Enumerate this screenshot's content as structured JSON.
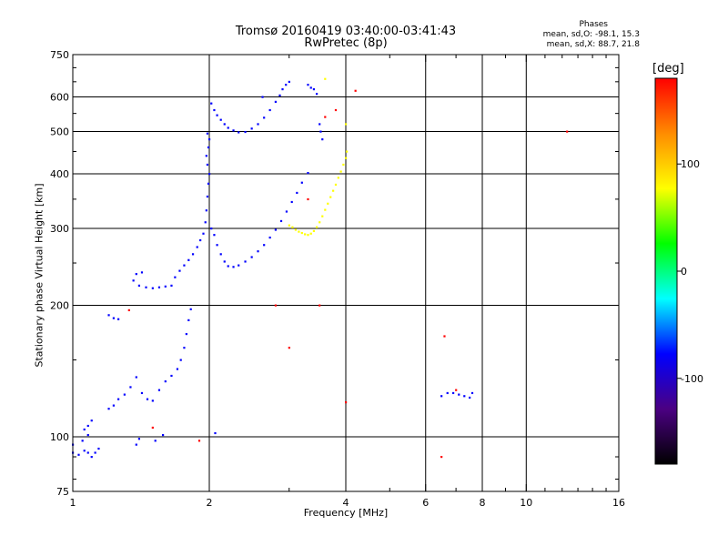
{
  "header": {
    "title_line1": "Tromsø 20160419 03:40:00-03:41:43",
    "title_line2": "RwPretec (8p)",
    "phases_title": "Phases",
    "phases_o": "mean, sd,O:  -98.1, 15.3",
    "phases_x": "mean, sd,X:  88.7, 21.8"
  },
  "colorbar": {
    "unit": "[deg]",
    "range": [
      -180,
      180
    ],
    "ticks": [
      100,
      0,
      -100
    ],
    "stops": [
      "#000000",
      "#4b0082",
      "#0000ff",
      "#00ffff",
      "#00ff00",
      "#ffff00",
      "#ff8c00",
      "#ff0000"
    ]
  },
  "chart_data": {
    "type": "scatter",
    "xlabel": "Frequency [MHz]",
    "ylabel": "Stationary phase Virtual Height [km]",
    "xscale": "log",
    "yscale": "log",
    "xlim": [
      1,
      16
    ],
    "ylim": [
      75,
      750
    ],
    "xticks": [
      1,
      2,
      4,
      6,
      8,
      10,
      16
    ],
    "yticks": [
      75,
      100,
      200,
      300,
      400,
      500,
      600,
      750
    ],
    "xgrid": [
      2,
      4,
      6,
      8,
      10
    ],
    "ygrid": [
      100,
      200,
      300,
      400,
      500,
      600
    ],
    "grid": true,
    "series": [
      {
        "polarity": "O",
        "phase": -100,
        "color": "#0000ff",
        "points": [
          [
            1.0,
            92
          ],
          [
            1.03,
            91
          ],
          [
            1.06,
            93
          ],
          [
            1.08,
            92
          ],
          [
            1.1,
            90
          ],
          [
            1.12,
            92
          ],
          [
            1.14,
            94
          ],
          [
            1.06,
            104
          ],
          [
            1.08,
            106
          ],
          [
            1.1,
            109
          ],
          [
            1.2,
            116
          ],
          [
            1.23,
            118
          ],
          [
            1.26,
            122
          ],
          [
            1.3,
            125
          ],
          [
            1.34,
            130
          ],
          [
            1.38,
            137
          ],
          [
            1.42,
            126
          ],
          [
            1.46,
            122
          ],
          [
            1.5,
            121
          ],
          [
            1.55,
            128
          ],
          [
            1.6,
            134
          ],
          [
            1.65,
            138
          ],
          [
            1.7,
            143
          ],
          [
            1.73,
            150
          ],
          [
            1.76,
            160
          ],
          [
            1.78,
            172
          ],
          [
            1.8,
            185
          ],
          [
            1.82,
            196
          ],
          [
            1.2,
            190
          ],
          [
            1.23,
            187
          ],
          [
            1.26,
            186
          ],
          [
            1.38,
            236
          ],
          [
            1.42,
            238
          ],
          [
            1.36,
            228
          ],
          [
            1.4,
            222
          ],
          [
            1.45,
            220
          ],
          [
            1.5,
            219
          ],
          [
            1.55,
            220
          ],
          [
            1.6,
            221
          ],
          [
            1.65,
            222
          ],
          [
            1.68,
            232
          ],
          [
            1.72,
            240
          ],
          [
            1.76,
            247
          ],
          [
            1.8,
            254
          ],
          [
            1.84,
            262
          ],
          [
            1.88,
            272
          ],
          [
            1.91,
            282
          ],
          [
            1.94,
            292
          ],
          [
            1.96,
            310
          ],
          [
            1.97,
            330
          ],
          [
            1.98,
            355
          ],
          [
            1.99,
            380
          ],
          [
            2.0,
            400
          ],
          [
            1.98,
            420
          ],
          [
            1.97,
            440
          ],
          [
            1.99,
            460
          ],
          [
            2.0,
            480
          ],
          [
            1.98,
            495
          ],
          [
            2.02,
            300
          ],
          [
            2.05,
            290
          ],
          [
            2.08,
            275
          ],
          [
            2.12,
            262
          ],
          [
            2.16,
            252
          ],
          [
            2.2,
            246
          ],
          [
            2.26,
            245
          ],
          [
            2.32,
            247
          ],
          [
            2.4,
            252
          ],
          [
            2.48,
            258
          ],
          [
            2.56,
            266
          ],
          [
            2.64,
            275
          ],
          [
            2.72,
            286
          ],
          [
            2.8,
            298
          ],
          [
            2.88,
            312
          ],
          [
            2.96,
            328
          ],
          [
            3.04,
            345
          ],
          [
            3.12,
            362
          ],
          [
            3.2,
            382
          ],
          [
            3.3,
            402
          ],
          [
            2.02,
            580
          ],
          [
            2.05,
            560
          ],
          [
            2.08,
            545
          ],
          [
            2.12,
            532
          ],
          [
            2.16,
            520
          ],
          [
            2.2,
            510
          ],
          [
            2.26,
            503
          ],
          [
            2.32,
            498
          ],
          [
            2.4,
            499
          ],
          [
            2.48,
            508
          ],
          [
            2.56,
            520
          ],
          [
            2.64,
            538
          ],
          [
            2.72,
            560
          ],
          [
            2.8,
            585
          ],
          [
            2.86,
            605
          ],
          [
            2.9,
            625
          ],
          [
            2.95,
            640
          ],
          [
            3.0,
            650
          ],
          [
            1.0,
            96
          ],
          [
            1.05,
            98
          ],
          [
            1.08,
            101
          ],
          [
            1.38,
            96
          ],
          [
            1.4,
            99
          ],
          [
            1.52,
            98
          ],
          [
            1.58,
            101
          ],
          [
            3.3,
            640
          ],
          [
            3.35,
            630
          ],
          [
            3.4,
            625
          ],
          [
            3.45,
            610
          ],
          [
            3.5,
            520
          ],
          [
            3.52,
            500
          ],
          [
            3.55,
            480
          ],
          [
            2.06,
            102
          ],
          [
            2.62,
            600
          ],
          [
            6.5,
            124
          ],
          [
            6.7,
            126
          ],
          [
            6.9,
            126
          ],
          [
            7.1,
            125
          ],
          [
            7.3,
            124
          ],
          [
            7.5,
            123
          ],
          [
            7.6,
            126
          ]
        ]
      },
      {
        "polarity": "X",
        "phase": 100,
        "color": "#ffff00",
        "points": [
          [
            3.0,
            305
          ],
          [
            3.05,
            302
          ],
          [
            3.1,
            298
          ],
          [
            3.15,
            295
          ],
          [
            3.2,
            293
          ],
          [
            3.25,
            291
          ],
          [
            3.3,
            290
          ],
          [
            3.35,
            292
          ],
          [
            3.4,
            296
          ],
          [
            3.45,
            302
          ],
          [
            3.5,
            310
          ],
          [
            3.55,
            320
          ],
          [
            3.6,
            331
          ],
          [
            3.65,
            342
          ],
          [
            3.7,
            354
          ],
          [
            3.75,
            366
          ],
          [
            3.8,
            378
          ],
          [
            3.85,
            392
          ],
          [
            3.9,
            405
          ],
          [
            3.95,
            420
          ],
          [
            4.0,
            435
          ],
          [
            4.02,
            450
          ],
          [
            3.6,
            660
          ],
          [
            4.0,
            520
          ]
        ]
      },
      {
        "polarity": "scatter",
        "phase": null,
        "color": "#ff0000",
        "points": [
          [
            1.33,
            195
          ],
          [
            1.5,
            105
          ],
          [
            1.9,
            98
          ],
          [
            2.8,
            200
          ],
          [
            3.5,
            200
          ],
          [
            4.0,
            120
          ],
          [
            4.2,
            620
          ],
          [
            12.3,
            500
          ],
          [
            6.5,
            90
          ],
          [
            6.6,
            170
          ],
          [
            7.0,
            128
          ],
          [
            3.0,
            160
          ],
          [
            3.3,
            350
          ],
          [
            3.6,
            540
          ],
          [
            3.8,
            560
          ]
        ]
      }
    ]
  }
}
